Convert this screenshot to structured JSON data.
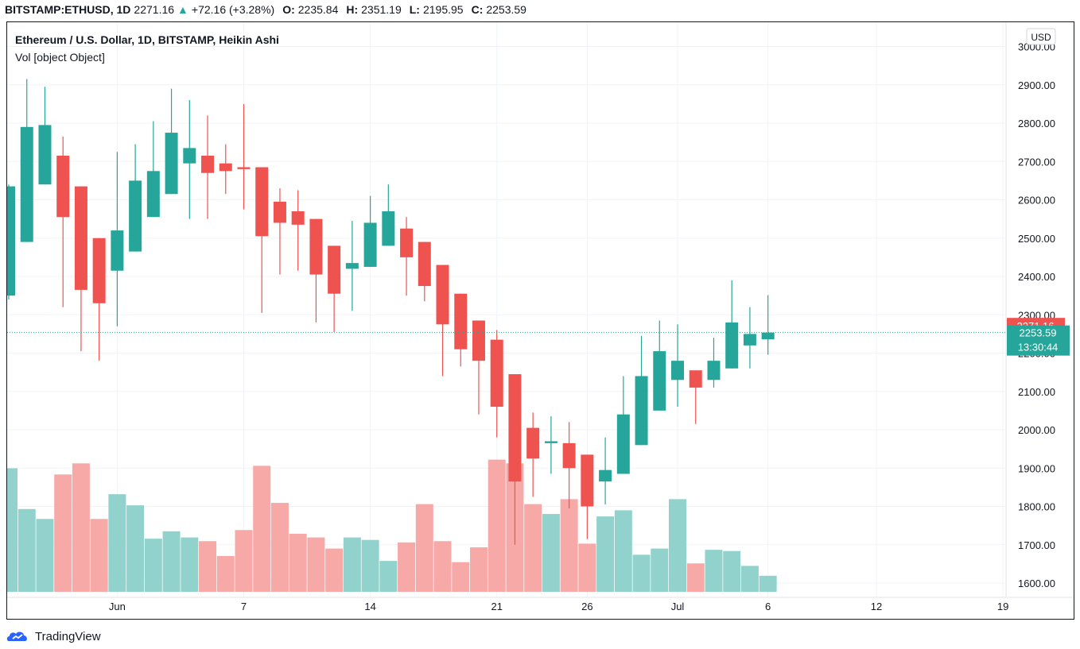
{
  "header": {
    "symbol": "BITSTAMP:ETHUSD, 1D",
    "last": "2271.16",
    "arrow": "▲",
    "change": "+72.16 (+3.28%)",
    "o_label": "O:",
    "o_value": "2235.84",
    "h_label": "H:",
    "h_value": "2351.19",
    "l_label": "L:",
    "l_value": "2195.95",
    "c_label": "C:",
    "c_value": "2253.59"
  },
  "legend": {
    "title": "Ethereum / U.S. Dollar, 1D, BITSTAMP, Heikin Ashi",
    "volume": "Vol [object Object]"
  },
  "currency_button": "USD",
  "price_labels": {
    "last_price": "2271.16",
    "close_price": "2253.59",
    "countdown": "13:30:44"
  },
  "footer": {
    "brand": "TradingView"
  },
  "colors": {
    "up": "#26a69a",
    "down": "#ef5350",
    "up_vol": "#92d2cc",
    "down_vol": "#f7a9a7",
    "grid": "#f0f3fa"
  },
  "chart_data": {
    "type": "candlestick",
    "title": "Ethereum / U.S. Dollar, 1D, BITSTAMP, Heikin Ashi",
    "y_ticks": [
      "1600.00",
      "1700.00",
      "1800.00",
      "1900.00",
      "2000.00",
      "2100.00",
      "2200.00",
      "2300.00",
      "2400.00",
      "2500.00",
      "2600.00",
      "2700.00",
      "2800.00",
      "2900.00",
      "3000.00"
    ],
    "ylim": [
      1575,
      3030
    ],
    "x_ticks": [
      {
        "label": "Jun",
        "day": 6
      },
      {
        "label": "7",
        "day": 13
      },
      {
        "label": "14",
        "day": 20
      },
      {
        "label": "21",
        "day": 27
      },
      {
        "label": "26",
        "day": 32
      },
      {
        "label": "Jul",
        "day": 37
      },
      {
        "label": "6",
        "day": 42
      },
      {
        "label": "12",
        "day": 48
      },
      {
        "label": "19",
        "day": 55
      }
    ],
    "candles": [
      {
        "d": 0,
        "o": 2350,
        "h": 2640,
        "l": 2340,
        "c": 2635
      },
      {
        "d": 1,
        "o": 2490,
        "h": 2915,
        "l": 2490,
        "c": 2790
      },
      {
        "d": 2,
        "o": 2640,
        "h": 2895,
        "l": 2640,
        "c": 2795
      },
      {
        "d": 3,
        "o": 2715,
        "h": 2765,
        "l": 2320,
        "c": 2555
      },
      {
        "d": 4,
        "o": 2635,
        "h": 2635,
        "l": 2205,
        "c": 2365
      },
      {
        "d": 5,
        "o": 2500,
        "h": 2500,
        "l": 2180,
        "c": 2330
      },
      {
        "d": 6,
        "o": 2415,
        "h": 2725,
        "l": 2270,
        "c": 2520
      },
      {
        "d": 7,
        "o": 2465,
        "h": 2745,
        "l": 2465,
        "c": 2650
      },
      {
        "d": 8,
        "o": 2555,
        "h": 2805,
        "l": 2555,
        "c": 2675
      },
      {
        "d": 9,
        "o": 2615,
        "h": 2890,
        "l": 2615,
        "c": 2775
      },
      {
        "d": 10,
        "o": 2695,
        "h": 2860,
        "l": 2550,
        "c": 2735
      },
      {
        "d": 11,
        "o": 2715,
        "h": 2820,
        "l": 2550,
        "c": 2670
      },
      {
        "d": 12,
        "o": 2695,
        "h": 2745,
        "l": 2615,
        "c": 2675
      },
      {
        "d": 13,
        "o": 2685,
        "h": 2850,
        "l": 2575,
        "c": 2680
      },
      {
        "d": 14,
        "o": 2685,
        "h": 2685,
        "l": 2305,
        "c": 2505
      },
      {
        "d": 15,
        "o": 2595,
        "h": 2630,
        "l": 2405,
        "c": 2540
      },
      {
        "d": 16,
        "o": 2570,
        "h": 2625,
        "l": 2415,
        "c": 2535
      },
      {
        "d": 17,
        "o": 2550,
        "h": 2550,
        "l": 2280,
        "c": 2405
      },
      {
        "d": 18,
        "o": 2480,
        "h": 2480,
        "l": 2255,
        "c": 2355
      },
      {
        "d": 19,
        "o": 2420,
        "h": 2545,
        "l": 2310,
        "c": 2435
      },
      {
        "d": 20,
        "o": 2425,
        "h": 2610,
        "l": 2425,
        "c": 2540
      },
      {
        "d": 21,
        "o": 2480,
        "h": 2640,
        "l": 2480,
        "c": 2570
      },
      {
        "d": 22,
        "o": 2525,
        "h": 2555,
        "l": 2350,
        "c": 2450
      },
      {
        "d": 23,
        "o": 2490,
        "h": 2490,
        "l": 2335,
        "c": 2375
      },
      {
        "d": 24,
        "o": 2430,
        "h": 2430,
        "l": 2140,
        "c": 2275
      },
      {
        "d": 25,
        "o": 2355,
        "h": 2355,
        "l": 2165,
        "c": 2210
      },
      {
        "d": 26,
        "o": 2285,
        "h": 2285,
        "l": 2040,
        "c": 2180
      },
      {
        "d": 27,
        "o": 2235,
        "h": 2260,
        "l": 1980,
        "c": 2060
      },
      {
        "d": 28,
        "o": 2145,
        "h": 2145,
        "l": 1700,
        "c": 1865
      },
      {
        "d": 29,
        "o": 2005,
        "h": 2045,
        "l": 1825,
        "c": 1925
      },
      {
        "d": 30,
        "o": 1965,
        "h": 2035,
        "l": 1885,
        "c": 1970
      },
      {
        "d": 31,
        "o": 1965,
        "h": 2020,
        "l": 1795,
        "c": 1900
      },
      {
        "d": 32,
        "o": 1935,
        "h": 1935,
        "l": 1715,
        "c": 1800
      },
      {
        "d": 33,
        "o": 1865,
        "h": 1980,
        "l": 1805,
        "c": 1895
      },
      {
        "d": 34,
        "o": 1885,
        "h": 2140,
        "l": 1885,
        "c": 2040
      },
      {
        "d": 35,
        "o": 1960,
        "h": 2245,
        "l": 1960,
        "c": 2140
      },
      {
        "d": 36,
        "o": 2050,
        "h": 2285,
        "l": 2050,
        "c": 2205
      },
      {
        "d": 37,
        "o": 2130,
        "h": 2275,
        "l": 2060,
        "c": 2180
      },
      {
        "d": 38,
        "o": 2155,
        "h": 2155,
        "l": 2015,
        "c": 2110
      },
      {
        "d": 39,
        "o": 2130,
        "h": 2240,
        "l": 2110,
        "c": 2180
      },
      {
        "d": 40,
        "o": 2160,
        "h": 2390,
        "l": 2160,
        "c": 2280
      },
      {
        "d": 41,
        "o": 2220,
        "h": 2320,
        "l": 2160,
        "c": 2250
      },
      {
        "d": 42,
        "o": 2235.84,
        "h": 2351.19,
        "l": 2195.95,
        "c": 2253.59
      }
    ],
    "volume_max": 100,
    "volume": [
      {
        "d": 0,
        "v": 100,
        "up": true
      },
      {
        "d": 1,
        "v": 67,
        "up": true
      },
      {
        "d": 2,
        "v": 59,
        "up": true
      },
      {
        "d": 3,
        "v": 95,
        "up": false
      },
      {
        "d": 4,
        "v": 104,
        "up": false
      },
      {
        "d": 5,
        "v": 59,
        "up": false
      },
      {
        "d": 6,
        "v": 79,
        "up": true
      },
      {
        "d": 7,
        "v": 70,
        "up": true
      },
      {
        "d": 8,
        "v": 43,
        "up": true
      },
      {
        "d": 9,
        "v": 49,
        "up": true
      },
      {
        "d": 10,
        "v": 44,
        "up": true
      },
      {
        "d": 11,
        "v": 41,
        "up": false
      },
      {
        "d": 12,
        "v": 29,
        "up": false
      },
      {
        "d": 13,
        "v": 50,
        "up": false
      },
      {
        "d": 14,
        "v": 102,
        "up": false
      },
      {
        "d": 15,
        "v": 72,
        "up": false
      },
      {
        "d": 16,
        "v": 47,
        "up": false
      },
      {
        "d": 17,
        "v": 44,
        "up": false
      },
      {
        "d": 18,
        "v": 35,
        "up": false
      },
      {
        "d": 19,
        "v": 44,
        "up": true
      },
      {
        "d": 20,
        "v": 42,
        "up": true
      },
      {
        "d": 21,
        "v": 25,
        "up": true
      },
      {
        "d": 22,
        "v": 40,
        "up": false
      },
      {
        "d": 23,
        "v": 71,
        "up": false
      },
      {
        "d": 24,
        "v": 41,
        "up": false
      },
      {
        "d": 25,
        "v": 24,
        "up": false
      },
      {
        "d": 26,
        "v": 36,
        "up": false
      },
      {
        "d": 27,
        "v": 107,
        "up": false
      },
      {
        "d": 28,
        "v": 104,
        "up": false
      },
      {
        "d": 29,
        "v": 71,
        "up": false
      },
      {
        "d": 30,
        "v": 63,
        "up": true
      },
      {
        "d": 31,
        "v": 75,
        "up": false
      },
      {
        "d": 32,
        "v": 39,
        "up": false
      },
      {
        "d": 33,
        "v": 61,
        "up": true
      },
      {
        "d": 34,
        "v": 66,
        "up": true
      },
      {
        "d": 35,
        "v": 30,
        "up": true
      },
      {
        "d": 36,
        "v": 35,
        "up": true
      },
      {
        "d": 37,
        "v": 75,
        "up": true
      },
      {
        "d": 38,
        "v": 23,
        "up": false
      },
      {
        "d": 39,
        "v": 34,
        "up": true
      },
      {
        "d": 40,
        "v": 33,
        "up": true
      },
      {
        "d": 41,
        "v": 21,
        "up": true
      },
      {
        "d": 42,
        "v": 13,
        "up": true
      }
    ]
  }
}
